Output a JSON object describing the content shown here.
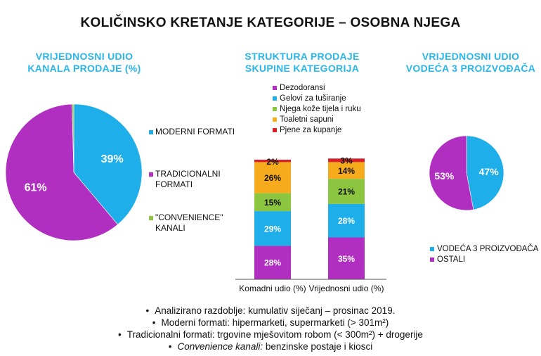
{
  "title": "KOLIČINSKO KRETANJE KATEGORIJE – OSOBNA NJEGA",
  "colors": {
    "blue": "#1eaeea",
    "purple": "#b12fc0",
    "green": "#8cc540",
    "orange": "#f6ab1d",
    "red": "#d8202a"
  },
  "chart_data": [
    {
      "type": "pie",
      "title_line1": "VRIJEDNOSNI UDIO",
      "title_line2": "KANALA PRODAJE (%)",
      "labels": [
        "MODERNI FORMATI",
        "TRADICIONALNI FORMATI",
        "\"CONVENIENCE\" KANALI"
      ],
      "values": [
        39,
        61,
        0.4
      ],
      "value_labels": [
        "39%",
        "61%",
        ""
      ],
      "legend": [
        {
          "lines": [
            "MODERNI FORMATI"
          ],
          "color": "#1eaeea"
        },
        {
          "lines": [
            "TRADICIONALNI",
            "FORMATI"
          ],
          "color": "#b12fc0"
        },
        {
          "lines": [
            "\"CONVENIENCE\"",
            "KANALI"
          ],
          "color": "#8cc540"
        }
      ]
    },
    {
      "type": "bar",
      "stacked": true,
      "title_line1": "STRUKTURA PRODAJE",
      "title_line2": "SKUPINE KATEGORIJA",
      "categories": [
        "Komadni udio (%)",
        "Vrijednosni udio (%)"
      ],
      "series": [
        {
          "name": "Dezodoransi",
          "color": "#b12fc0",
          "values": [
            28,
            35
          ],
          "labels": [
            "28%",
            "35%"
          ]
        },
        {
          "name": "Gelovi za tuširanje",
          "color": "#1eaeea",
          "values": [
            29,
            28
          ],
          "labels": [
            "29%",
            "28%"
          ]
        },
        {
          "name": "Njega kože tijela i ruku",
          "color": "#8cc540",
          "values": [
            15,
            21
          ],
          "labels": [
            "15%",
            "21%"
          ]
        },
        {
          "name": "Toaletni sapuni",
          "color": "#f6ab1d",
          "values": [
            26,
            14
          ],
          "labels": [
            "26%",
            "14%"
          ]
        },
        {
          "name": "Pjene za kupanje",
          "color": "#d8202a",
          "values": [
            2,
            3
          ],
          "labels": [
            "2%",
            "3%"
          ]
        }
      ],
      "ylim": [
        0,
        100
      ]
    },
    {
      "type": "pie",
      "title_line1": "VRIJEDNOSNI UDIO",
      "title_line2": "VODEĆA 3 PROIZVOĐAČA",
      "labels": [
        "VODEĆA 3 PROIZVOĐAČA",
        "OSTALI"
      ],
      "values": [
        47,
        53
      ],
      "value_labels": [
        "47%",
        "53%"
      ],
      "legend": [
        {
          "lines": [
            "VODEĆA 3 PROIZVOĐAČA"
          ],
          "color": "#1eaeea"
        },
        {
          "lines": [
            "OSTALI"
          ],
          "color": "#b12fc0"
        }
      ]
    }
  ],
  "notes": [
    {
      "prefix": "",
      "text": "Analizirano razdoblje: kumulativ siječanj – prosinac 2019."
    },
    {
      "prefix": "",
      "text": "Moderni formati: hipermarketi, supermarketi (> 301m²)"
    },
    {
      "prefix": "",
      "text": "Tradicionalni formati: trgovine mješovitom robom (< 300m²) + drogerije"
    },
    {
      "prefix": "Convenience kanali:",
      "text": " benzinske postaje i kiosci"
    }
  ]
}
